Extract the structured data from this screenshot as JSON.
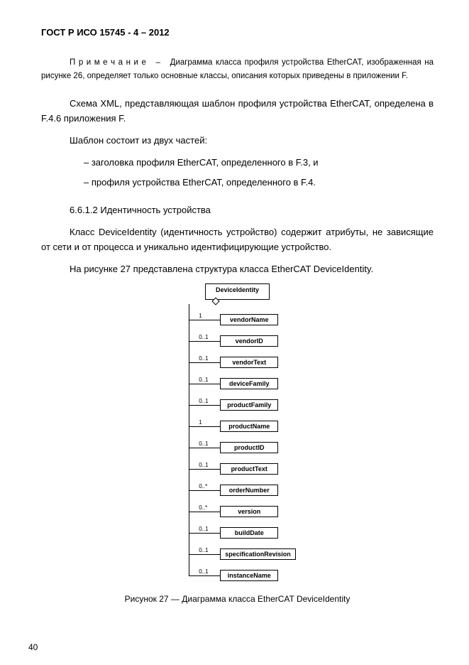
{
  "header": "ГОСТ Р ИСО 15745 - 4 – 2012",
  "note_label": "П р и м е ч а н и е",
  "note_sep": "–",
  "note_body": "Диаграмма класса профиля устройства EtherCAT, изображенная на рисунке 26, определяет только основные классы, описания которых приведены в приложении F.",
  "para1": "Схема XML, представляющая шаблон профиля устройства EtherCAT, определена в F.4.6 приложения F.",
  "para2": "Шаблон состоит из двух частей:",
  "bullets": [
    "–   заголовка профиля EtherCAT, определенного в F.3, и",
    "–   профиля устройства EtherCAT, определенного в F.4."
  ],
  "section": "6.6.1.2  Идентичность устройства",
  "para3": "Класс DeviceIdentity (идентичность устройство) содержит атрибуты, не зависящие от сети и от процесса и уникально идентифицирующие устройство.",
  "para4": "На рисунке 27 представлена структура класса EtherCAT DeviceIdentity.",
  "uml": {
    "root": "DeviceIdentity",
    "children": [
      {
        "mult": "1",
        "name": "vendorName"
      },
      {
        "mult": "0..1",
        "name": "vendorID"
      },
      {
        "mult": "0..1",
        "name": "vendorText"
      },
      {
        "mult": "0..1",
        "name": "deviceFamily"
      },
      {
        "mult": "0..1",
        "name": "productFamily"
      },
      {
        "mult": "1",
        "name": "productName"
      },
      {
        "mult": "0..1",
        "name": "productID"
      },
      {
        "mult": "0..1",
        "name": "productText"
      },
      {
        "mult": "0..*",
        "name": "orderNumber"
      },
      {
        "mult": "0..*",
        "name": "version"
      },
      {
        "mult": "0..1",
        "name": "buildDate"
      },
      {
        "mult": "0..1",
        "name": "specificationRevision"
      },
      {
        "mult": "0..1",
        "name": "instanceName"
      }
    ]
  },
  "caption": "Рисунок 27 — Диаграмма класса EtherCAT DeviceIdentity",
  "pagenum": "40"
}
